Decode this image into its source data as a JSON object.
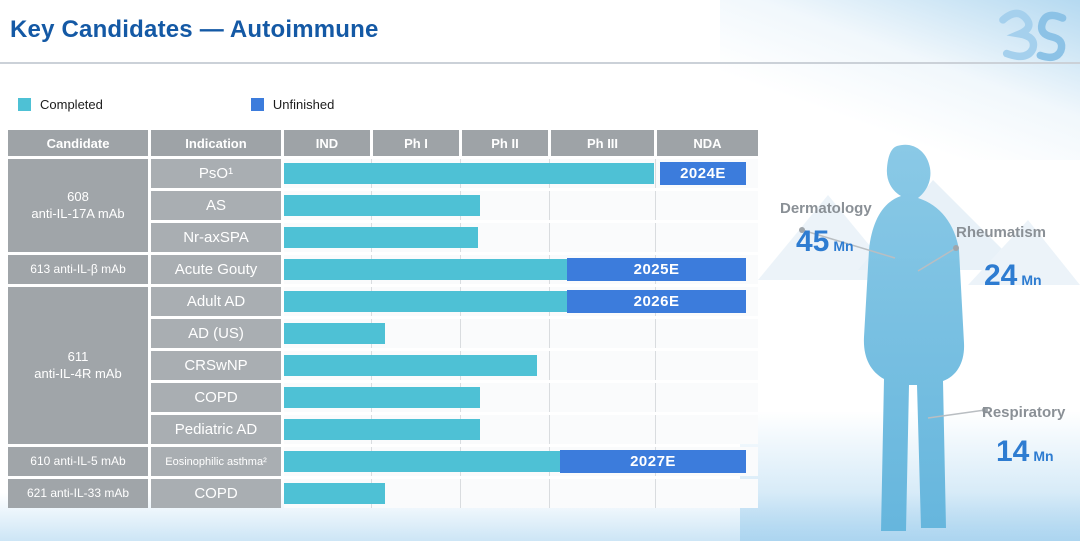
{
  "slide": {
    "title": "Key Candidates — Autoimmune",
    "logo_text": "3S"
  },
  "legend": {
    "completed_label": "Completed",
    "unfinished_label": "Unfinished"
  },
  "colors": {
    "title_blue": "#1459A5",
    "completed": "#4EC1D5",
    "unfinished": "#3C7CDC",
    "header_gray": "#9EA3A7",
    "candidate_gray": "#A0A5A9",
    "indication_gray": "#A9AEB2",
    "market_number_blue": "#2E7CD1",
    "market_label_gray": "#8A9096"
  },
  "table_headers": [
    "Candidate",
    "Indication",
    "IND",
    "Ph I",
    "Ph II",
    "Ph III",
    "NDA"
  ],
  "candidate_groups": [
    {
      "lines": [
        "608",
        "anti-IL-17A mAb"
      ],
      "rows": 3
    },
    {
      "lines": [
        "613 anti-IL-β mAb"
      ],
      "rows": 1
    },
    {
      "lines": [
        "611",
        "anti-IL-4R mAb"
      ],
      "rows": 5
    },
    {
      "lines": [
        "610 anti-IL-5 mAb"
      ],
      "rows": 1
    },
    {
      "lines": [
        "621 anti-IL-33 mAb"
      ],
      "rows": 1
    }
  ],
  "chart_data": {
    "type": "bar",
    "title": "Key Candidates — Autoimmune",
    "stages": [
      "IND",
      "Ph I",
      "Ph II",
      "Ph III",
      "NDA"
    ],
    "legend": [
      {
        "label": "Completed",
        "color": "#4EC1D5"
      },
      {
        "label": "Unfinished",
        "color": "#3C7CDC"
      }
    ],
    "rows": [
      {
        "candidate": "608 anti-IL-17A mAb",
        "indication": "PsO¹",
        "progress_stage": "Ph III",
        "completed_pct": 78,
        "approval": {
          "label": "2024E",
          "start_pct": 79.3,
          "end_pct": 97.5
        }
      },
      {
        "candidate": "608 anti-IL-17A mAb",
        "indication": "AS",
        "progress_stage": "Ph I",
        "completed_pct": 41.4,
        "approval": null
      },
      {
        "candidate": "608 anti-IL-17A mAb",
        "indication": "Nr-axSPA",
        "progress_stage": "Ph I",
        "completed_pct": 40.9,
        "approval": null
      },
      {
        "candidate": "613 anti-IL-β mAb",
        "indication": "Acute Gouty",
        "progress_stage": "Ph II",
        "completed_pct": 59.7,
        "approval": {
          "label": "2025E",
          "start_pct": 59.7,
          "end_pct": 97.5
        }
      },
      {
        "candidate": "611 anti-IL-4R mAb",
        "indication": "Adult AD",
        "progress_stage": "Ph II",
        "completed_pct": 59.7,
        "approval": {
          "label": "2026E",
          "start_pct": 59.7,
          "end_pct": 97.5
        }
      },
      {
        "candidate": "611 anti-IL-4R mAb",
        "indication": "AD (US)",
        "progress_stage": "IND",
        "completed_pct": 21.3,
        "approval": null
      },
      {
        "candidate": "611 anti-IL-4R mAb",
        "indication": "CRSwNP",
        "progress_stage": "Ph II",
        "completed_pct": 53.4,
        "approval": null
      },
      {
        "candidate": "611 anti-IL-4R mAb",
        "indication": "COPD",
        "progress_stage": "Ph I",
        "completed_pct": 41.4,
        "approval": null
      },
      {
        "candidate": "611 anti-IL-4R mAb",
        "indication": "Pediatric AD",
        "progress_stage": "Ph I",
        "completed_pct": 41.4,
        "approval": null
      },
      {
        "candidate": "610 anti-IL-5 mAb",
        "indication": "Eosinophilic asthma²",
        "progress_stage": "Ph II",
        "completed_pct": 58.2,
        "approval": {
          "label": "2027E",
          "start_pct": 58.2,
          "end_pct": 97.5
        }
      },
      {
        "candidate": "621 anti-IL-33 mAb",
        "indication": "COPD",
        "progress_stage": "IND",
        "completed_pct": 21.3,
        "approval": null
      }
    ]
  },
  "market": {
    "items": [
      {
        "label": "Dermatology",
        "value": "45",
        "unit": "Mn"
      },
      {
        "label": "Rheumatism",
        "value": "24",
        "unit": "Mn"
      },
      {
        "label": "Respiratory",
        "value": "14",
        "unit": "Mn"
      }
    ]
  }
}
